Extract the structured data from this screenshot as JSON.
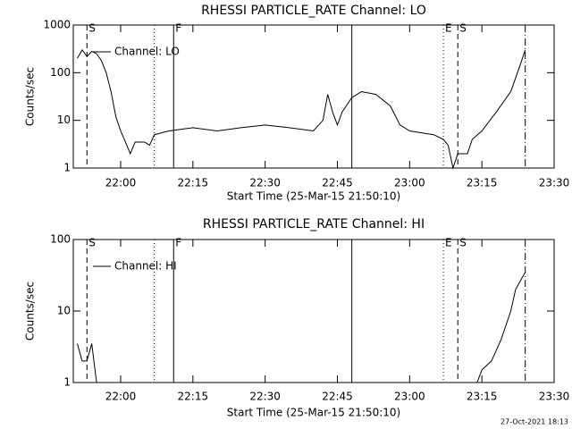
{
  "footer": "27-Oct-2021 18:13",
  "chart_data": [
    {
      "type": "line",
      "title": "RHESSI PARTICLE_RATE Channel: LO",
      "xlabel": "Start Time (25-Mar-15 21:50:10)",
      "ylabel": "Counts/sec",
      "log_y": true,
      "xlim": [
        "21:50:10",
        "23:30"
      ],
      "ylim": [
        1,
        1000
      ],
      "yticks": [
        1,
        10,
        100,
        1000
      ],
      "xticks": [
        "22:00",
        "22:15",
        "22:30",
        "22:45",
        "23:00",
        "23:15",
        "23:30"
      ],
      "markers": [
        {
          "x": "21:53",
          "style": "dashed",
          "label": "S"
        },
        {
          "x": "22:07",
          "style": "dotted"
        },
        {
          "x": "22:11",
          "style": "solid",
          "label": "F"
        },
        {
          "x": "22:48",
          "style": "solid"
        },
        {
          "x": "23:07",
          "style": "dotted",
          "label": "E"
        },
        {
          "x": "23:10",
          "style": "dashed",
          "label": "S"
        },
        {
          "x": "23:24",
          "style": "dashdot"
        }
      ],
      "x": [
        "21:51",
        "21:52",
        "21:53",
        "21:54",
        "21:55",
        "21:56",
        "21:57",
        "21:58",
        "21:59",
        "22:00",
        "22:01",
        "22:02",
        "22:03",
        "22:05",
        "22:06",
        "22:07",
        "22:10",
        "22:15",
        "22:20",
        "22:25",
        "22:30",
        "22:35",
        "22:40",
        "22:42",
        "22:43",
        "22:44",
        "22:45",
        "22:46",
        "22:48",
        "22:50",
        "22:53",
        "22:56",
        "22:58",
        "23:00",
        "23:05",
        "23:07",
        "23:08",
        "23:09",
        "23:10",
        "23:12",
        "23:13",
        "23:15",
        "23:18",
        "23:21",
        "23:23",
        "23:24"
      ],
      "series": [
        {
          "name": "Channel: LO",
          "color": "#000000",
          "values": [
            200,
            300,
            220,
            280,
            250,
            180,
            100,
            40,
            12,
            6,
            3.5,
            2,
            3.5,
            3.5,
            3,
            5,
            6,
            7,
            6,
            7,
            8,
            7,
            6,
            10,
            35,
            15,
            8,
            15,
            30,
            40,
            35,
            20,
            8,
            6,
            5,
            4,
            3,
            1,
            2,
            2,
            4,
            6,
            15,
            40,
            150,
            300
          ]
        }
      ]
    },
    {
      "type": "line",
      "title": "RHESSI PARTICLE_RATE Channel: HI",
      "xlabel": "Start Time (25-Mar-15 21:50:10)",
      "ylabel": "Counts/sec",
      "log_y": true,
      "xlim": [
        "21:50:10",
        "23:30"
      ],
      "ylim": [
        1,
        100
      ],
      "yticks": [
        1,
        10,
        100
      ],
      "xticks": [
        "22:00",
        "22:15",
        "22:30",
        "22:45",
        "23:00",
        "23:15",
        "23:30"
      ],
      "markers": [
        {
          "x": "21:53",
          "style": "dashed",
          "label": "S"
        },
        {
          "x": "22:07",
          "style": "dotted"
        },
        {
          "x": "22:11",
          "style": "solid",
          "label": "F"
        },
        {
          "x": "22:48",
          "style": "solid"
        },
        {
          "x": "23:07",
          "style": "dotted",
          "label": "E"
        },
        {
          "x": "23:10",
          "style": "dashed",
          "label": "S"
        },
        {
          "x": "23:24",
          "style": "dashdot"
        }
      ],
      "x": [
        "21:51",
        "21:52",
        "21:53",
        "21:54",
        "21:55",
        "23:13",
        "23:14",
        "23:15",
        "23:17",
        "23:19",
        "23:21",
        "23:22",
        "23:24"
      ],
      "series": [
        {
          "name": "Channel: HI",
          "color": "#000000",
          "values": [
            3.5,
            2,
            2,
            3.5,
            1,
            null,
            1,
            1.5,
            2,
            4,
            10,
            20,
            35
          ]
        }
      ]
    }
  ]
}
